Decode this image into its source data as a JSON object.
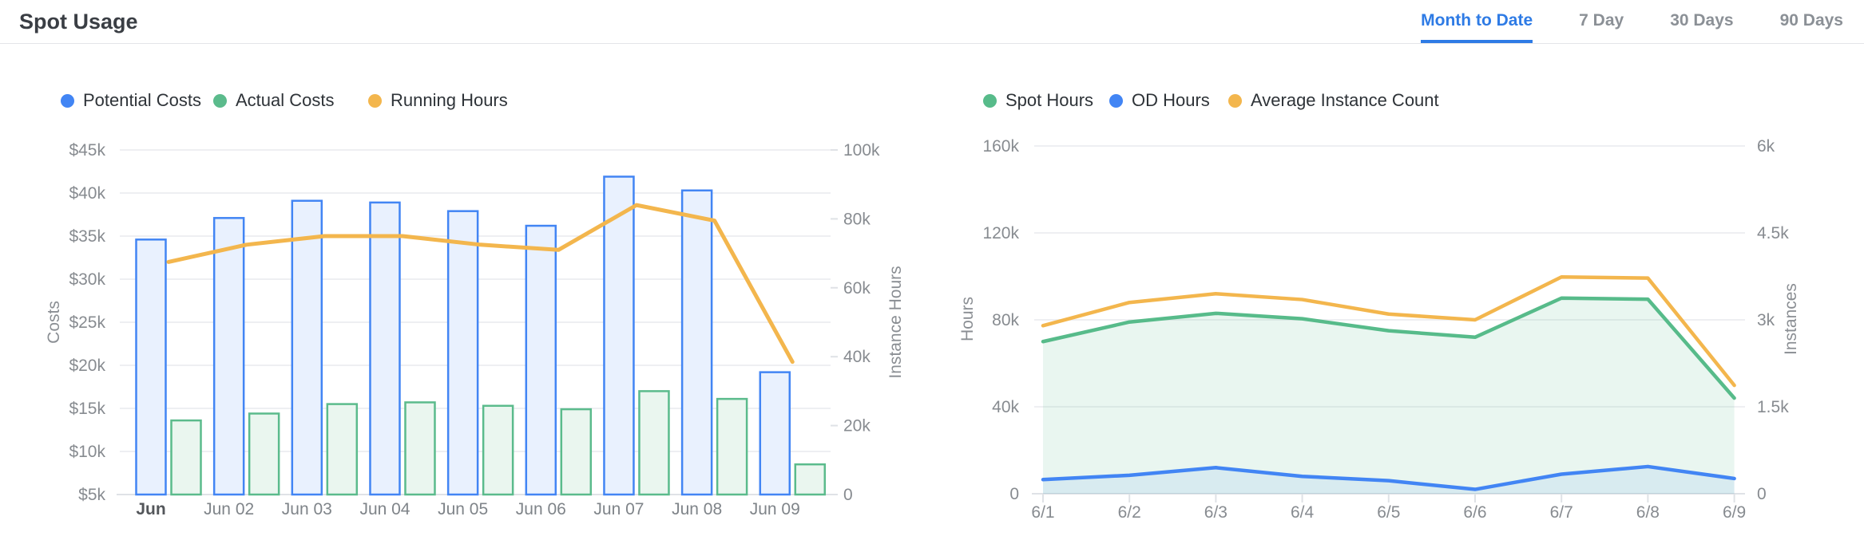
{
  "header": {
    "title": "Spot Usage",
    "tabs": [
      {
        "label": "Month to Date",
        "active": true
      },
      {
        "label": "7 Day",
        "active": false
      },
      {
        "label": "30 Days",
        "active": false
      },
      {
        "label": "90 Days",
        "active": false
      }
    ]
  },
  "colors": {
    "accent_blue": "#4285F4",
    "accent_green": "#57BB8A",
    "accent_orange": "#F3B64D",
    "active_tab_blue": "#2E7BE5",
    "grid_line": "#EEEFF2",
    "axis_line": "#DFE2E6",
    "tick_text": "#878B90",
    "axis_title_text": "#8A8E93",
    "x_label_text": "#7F8489",
    "x_label_bold_text": "#53565A",
    "legend_text": "#2E3338"
  },
  "chart_data": [
    {
      "type": "bar",
      "title": "",
      "categories": [
        "Jun",
        "Jun 02",
        "Jun 03",
        "Jun 04",
        "Jun 05",
        "Jun 06",
        "Jun 07",
        "Jun 08",
        "Jun 09"
      ],
      "series": [
        {
          "name": "Potential Costs",
          "kind": "bar",
          "axis": "left",
          "color": "#4285F4",
          "fill": "#E9F1FE",
          "values": [
            34600,
            37100,
            39100,
            38900,
            37900,
            36200,
            41900,
            40300,
            19200
          ]
        },
        {
          "name": "Actual Costs",
          "kind": "bar",
          "axis": "left",
          "color": "#5BBB8C",
          "fill": "#EAF6EF",
          "values": [
            13600,
            14400,
            15500,
            15700,
            15300,
            14900,
            17000,
            16100,
            8500
          ]
        },
        {
          "name": "Running Hours",
          "kind": "line",
          "axis": "right",
          "color": "#F3B64D",
          "values": [
            67500,
            72500,
            75000,
            75000,
            72500,
            71000,
            84000,
            79500,
            38500
          ]
        }
      ],
      "left_axis": {
        "label": "Costs",
        "min": 5000,
        "max": 45000,
        "ticks": [
          "$45k",
          "$40k",
          "$35k",
          "$30k",
          "$25k",
          "$20k",
          "$15k",
          "$10k",
          "$5k"
        ]
      },
      "right_axis": {
        "label": "Instance Hours",
        "min": 0,
        "max": 100000,
        "ticks": [
          "100k",
          "80k",
          "60k",
          "40k",
          "20k",
          "0"
        ]
      },
      "legend_position": "top",
      "grid": true
    },
    {
      "type": "area",
      "title": "",
      "x": [
        "6/1",
        "6/2",
        "6/3",
        "6/4",
        "6/5",
        "6/6",
        "6/7",
        "6/8",
        "6/9"
      ],
      "series": [
        {
          "name": "Spot Hours",
          "kind": "area",
          "axis": "left",
          "color": "#57BB8A",
          "fill": "rgba(87,187,138,0.13)",
          "values": [
            70000,
            79000,
            83000,
            80500,
            75000,
            72000,
            90000,
            89500,
            44000
          ]
        },
        {
          "name": "OD Hours",
          "kind": "area",
          "axis": "left",
          "color": "#4285F4",
          "fill": "rgba(66,133,244,0.10)",
          "values": [
            6500,
            8500,
            12000,
            8000,
            6000,
            2000,
            9000,
            12500,
            7000
          ]
        },
        {
          "name": "Average Instance Count",
          "kind": "line",
          "axis": "right",
          "color": "#F3B64D",
          "values": [
            2900,
            3300,
            3450,
            3350,
            3100,
            3000,
            3740,
            3720,
            1870
          ]
        }
      ],
      "left_axis": {
        "label": "Hours",
        "min": 0,
        "max": 160000,
        "ticks": [
          "160k",
          "120k",
          "80k",
          "40k",
          "0"
        ]
      },
      "right_axis": {
        "label": "Instances",
        "min": 0,
        "max": 6000,
        "ticks": [
          "6k",
          "4.5k",
          "3k",
          "1.5k",
          "0"
        ]
      },
      "legend_position": "top",
      "grid": true
    }
  ]
}
